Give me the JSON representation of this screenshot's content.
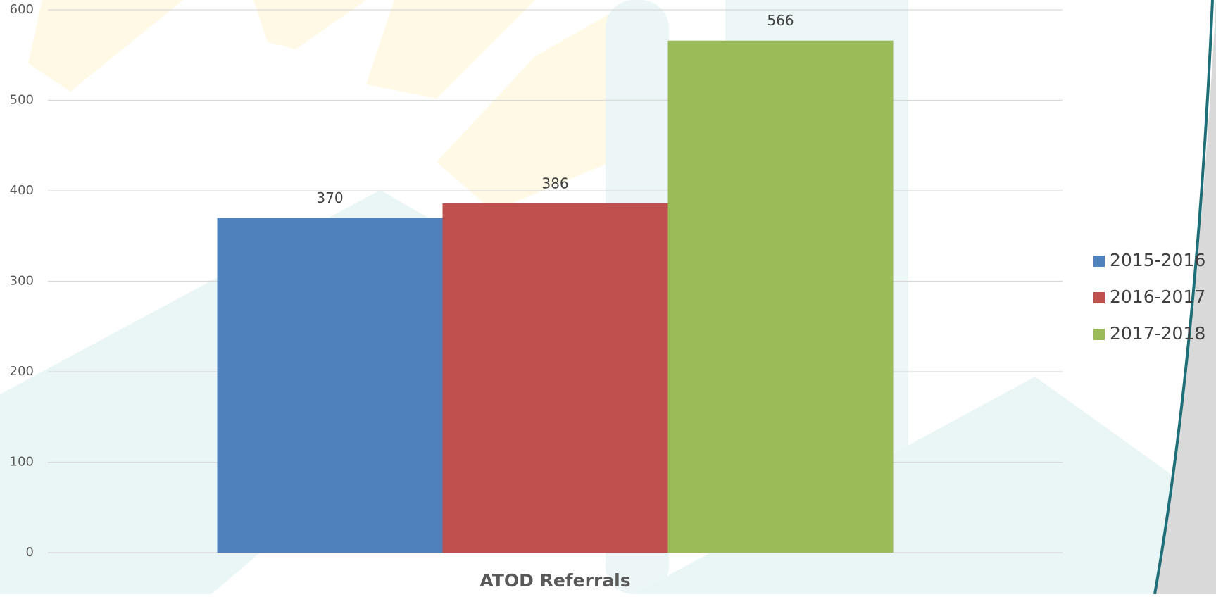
{
  "chart_data": {
    "type": "bar",
    "categories": [
      "ATOD Referrals"
    ],
    "series": [
      {
        "name": "2015-2016",
        "color": "#4f81bd",
        "values": [
          370
        ]
      },
      {
        "name": "2016-2017",
        "color": "#c0504d",
        "values": [
          386
        ]
      },
      {
        "name": "2017-2018",
        "color": "#9bbb59",
        "values": [
          566
        ]
      }
    ],
    "ylim": [
      0,
      600
    ],
    "yticks": [
      0,
      100,
      200,
      300,
      400,
      500,
      600
    ],
    "grid": true,
    "legend": "right",
    "data_labels": true
  }
}
